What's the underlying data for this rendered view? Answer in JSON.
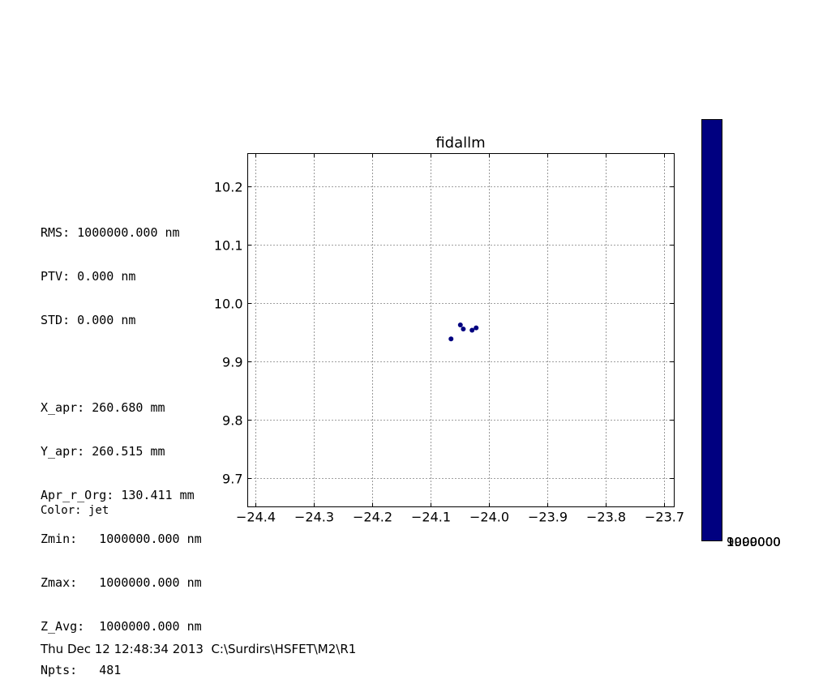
{
  "stats": {
    "rms": "RMS: 1000000.000 nm",
    "ptv": "PTV: 0.000 nm",
    "std": "STD: 0.000 nm",
    "x_apr": "X_apr: 260.680 mm",
    "y_apr": "Y_apr: 260.515 mm",
    "apr_r_org": "Apr_r_Org: 130.411 mm",
    "zmin": "Zmin:   1000000.000 nm",
    "zmax": "Zmax:   1000000.000 nm",
    "z_avg": "Z_Avg:  1000000.000 nm",
    "npts": "Npts:   481"
  },
  "color_label": "Color: jet",
  "footer": "Thu Dec 12 12:48:34 2013  C:\\Surdirs\\HSFET\\M2\\R1",
  "colorbar": {
    "color": "#000080",
    "tick_labels": [
      "9999000",
      "1000000",
      "1000000",
      "1000000",
      "1000000"
    ]
  },
  "chart_data": {
    "type": "scatter",
    "title": "fidallm",
    "xlabel": "",
    "ylabel": "",
    "xlim": [
      -24.413,
      -23.683
    ],
    "ylim": [
      9.65,
      10.256
    ],
    "xticks": [
      -24.4,
      -24.3,
      -24.2,
      -24.1,
      -24.0,
      -23.9,
      -23.8,
      -23.7
    ],
    "xtick_labels": [
      "−24.4",
      "−24.3",
      "−24.2",
      "−24.1",
      "−24.0",
      "−23.9",
      "−23.8",
      "−23.7"
    ],
    "yticks": [
      9.7,
      9.8,
      9.9,
      10.0,
      10.1,
      10.2
    ],
    "ytick_labels": [
      "9.7",
      "9.8",
      "9.9",
      "10.0",
      "10.1",
      "10.2"
    ],
    "grid": true,
    "marker_color": "#000080",
    "points": [
      {
        "x": -24.049,
        "y": 9.962
      },
      {
        "x": -24.044,
        "y": 9.955
      },
      {
        "x": -24.029,
        "y": 9.953
      },
      {
        "x": -24.022,
        "y": 9.957
      },
      {
        "x": -24.065,
        "y": 9.938
      }
    ]
  }
}
